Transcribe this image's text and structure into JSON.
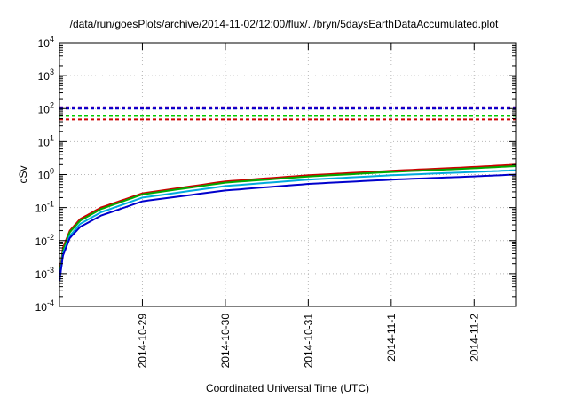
{
  "chart_data": {
    "type": "line",
    "title": "/data/run/goesPlots/archive/2014-11-02/12:00/flux/../bryn/5daysEarthDataAccumulated.plot",
    "xlabel": "Coordinated Universal Time (UTC)",
    "ylabel": "cSv",
    "yscale": "log",
    "ylim": [
      0.0001,
      10000
    ],
    "yticks": [
      {
        "base": "10",
        "exp": "-4"
      },
      {
        "base": "10",
        "exp": "-3"
      },
      {
        "base": "10",
        "exp": "-2"
      },
      {
        "base": "10",
        "exp": "-1"
      },
      {
        "base": "10",
        "exp": "0"
      },
      {
        "base": "10",
        "exp": "1"
      },
      {
        "base": "10",
        "exp": "2"
      },
      {
        "base": "10",
        "exp": "3"
      },
      {
        "base": "10",
        "exp": "4"
      }
    ],
    "xlim": [
      "2014-10-28T00:00",
      "2014-11-02T12:00"
    ],
    "xticks": [
      "2014-10-29",
      "2014-10-30",
      "2014-10-31",
      "2014-11-1",
      "2014-11-2"
    ],
    "grid": true,
    "legend": "none",
    "series": [
      {
        "color": "#cc0000",
        "style": "solid",
        "x": [
          "2014-10-28T00:00",
          "2014-10-28T01:00",
          "2014-10-28T03:00",
          "2014-10-28T06:00",
          "2014-10-28T12:00",
          "2014-10-29T00:00",
          "2014-10-30T00:00",
          "2014-10-31T00:00",
          "2014-11-01T00:00",
          "2014-11-02T00:00",
          "2014-11-02T12:00"
        ],
        "y": [
          0.0008,
          0.006,
          0.02,
          0.045,
          0.1,
          0.27,
          0.62,
          0.95,
          1.3,
          1.7,
          2.0
        ]
      },
      {
        "color": "#00aa00",
        "style": "solid",
        "x": [
          "2014-10-28T00:00",
          "2014-10-28T01:00",
          "2014-10-28T03:00",
          "2014-10-28T06:00",
          "2014-10-28T12:00",
          "2014-10-29T00:00",
          "2014-10-30T00:00",
          "2014-10-31T00:00",
          "2014-11-01T00:00",
          "2014-11-02T00:00",
          "2014-11-02T12:00"
        ],
        "y": [
          0.0007,
          0.005,
          0.018,
          0.04,
          0.09,
          0.25,
          0.57,
          0.87,
          1.2,
          1.55,
          1.8
        ]
      },
      {
        "color": "#00aadd",
        "style": "solid",
        "x": [
          "2014-10-28T00:00",
          "2014-10-28T01:00",
          "2014-10-28T03:00",
          "2014-10-28T06:00",
          "2014-10-28T12:00",
          "2014-10-29T00:00",
          "2014-10-30T00:00",
          "2014-10-31T00:00",
          "2014-11-01T00:00",
          "2014-11-02T00:00",
          "2014-11-02T12:00"
        ],
        "y": [
          0.0006,
          0.004,
          0.014,
          0.032,
          0.072,
          0.2,
          0.45,
          0.7,
          0.95,
          1.2,
          1.35
        ]
      },
      {
        "color": "#0000cc",
        "style": "solid",
        "x": [
          "2014-10-28T00:00",
          "2014-10-28T01:00",
          "2014-10-28T03:00",
          "2014-10-28T06:00",
          "2014-10-28T12:00",
          "2014-10-29T00:00",
          "2014-10-30T00:00",
          "2014-10-31T00:00",
          "2014-11-01T00:00",
          "2014-11-02T00:00",
          "2014-11-02T12:00"
        ],
        "y": [
          0.0006,
          0.0035,
          0.012,
          0.026,
          0.057,
          0.155,
          0.33,
          0.52,
          0.7,
          0.88,
          1.0
        ]
      },
      {
        "color": "#8800aa",
        "style": "dashed",
        "x": [
          "2014-10-28T00:00",
          "2014-11-02T12:00"
        ],
        "y": [
          110,
          110
        ]
      },
      {
        "color": "#0000cc",
        "style": "dashed",
        "x": [
          "2014-10-28T00:00",
          "2014-11-02T12:00"
        ],
        "y": [
          100,
          100
        ]
      },
      {
        "color": "#00cc00",
        "style": "dashed",
        "x": [
          "2014-10-28T00:00",
          "2014-11-02T12:00"
        ],
        "y": [
          60,
          60
        ]
      },
      {
        "color": "#cc0000",
        "style": "dashed",
        "x": [
          "2014-10-28T00:00",
          "2014-11-02T12:00"
        ],
        "y": [
          47,
          47
        ]
      }
    ]
  }
}
